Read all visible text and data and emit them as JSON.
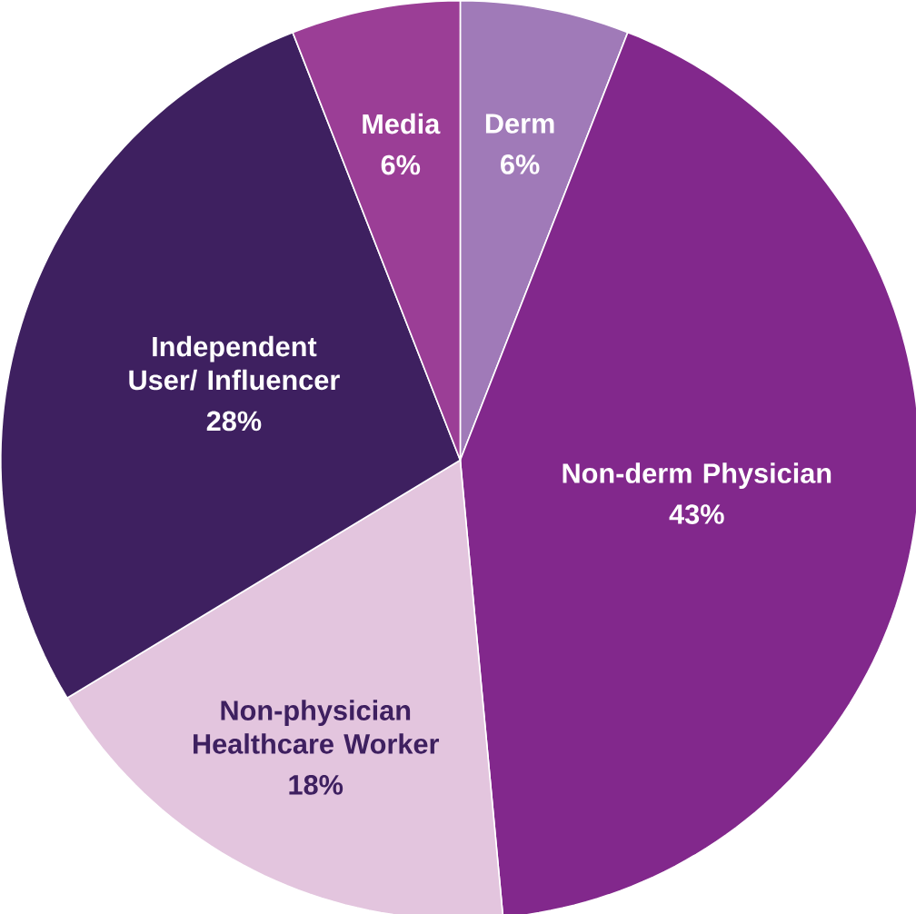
{
  "chart_data": {
    "type": "pie",
    "categories": [
      "Derm",
      "Non-derm Physician",
      "Non-physician Healthcare Worker",
      "Independent User/ Influencer",
      "Media"
    ],
    "values": [
      6,
      43,
      18,
      28,
      6
    ],
    "colors": [
      "#a07ab8",
      "#82288c",
      "#e3c5de",
      "#3e2060",
      "#9b3e96"
    ],
    "value_labels": [
      "6%",
      "43%",
      "18%",
      "28%",
      "6%"
    ]
  }
}
